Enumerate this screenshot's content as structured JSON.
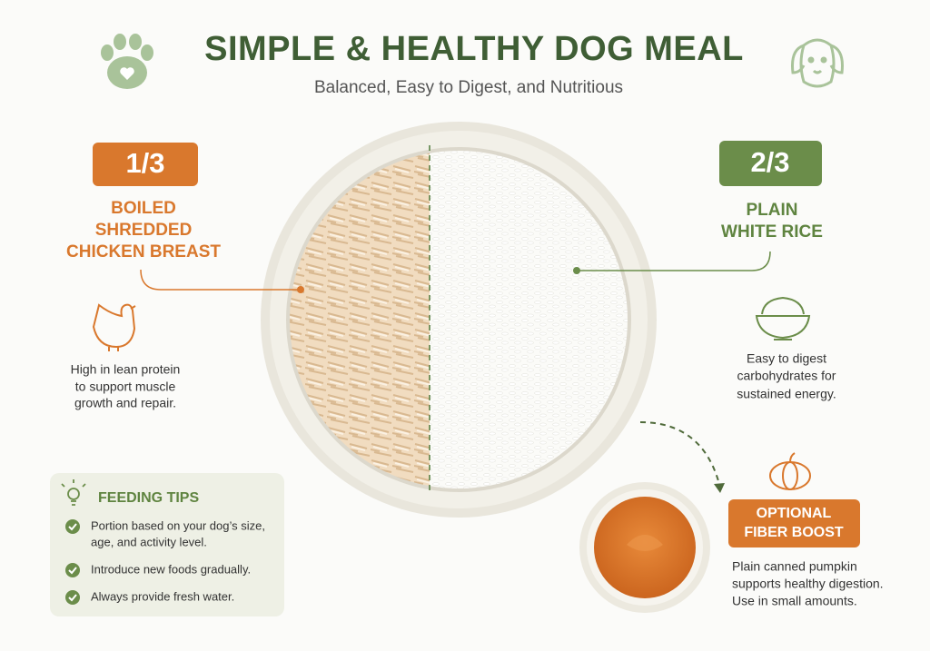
{
  "header": {
    "title": "SIMPLE & HEALTHY DOG MEAL",
    "subtitle": "Balanced, Easy to Digest, and Nutritious"
  },
  "chicken": {
    "portion": "1/3",
    "label_lines": [
      "BOILED",
      "SHREDDED",
      "CHICKEN BREAST"
    ],
    "description_lines": [
      "High in lean protein",
      "to support muscle",
      "growth and repair."
    ]
  },
  "rice": {
    "portion": "2/3",
    "label_lines": [
      "PLAIN",
      "WHITE RICE"
    ],
    "description_lines": [
      "Easy to digest",
      "carbohydrates for",
      "sustained energy."
    ]
  },
  "feeding_tips": {
    "title": "FEEDING TIPS",
    "items": [
      [
        "Portion based on your dog’s size,",
        "age, and activity level."
      ],
      [
        "Introduce new foods gradually."
      ],
      [
        "Always provide fresh water."
      ]
    ]
  },
  "optional": {
    "label_lines": [
      "OPTIONAL",
      "FIBER BOOST"
    ],
    "description_lines": [
      "Plain canned pumpkin",
      "supports healthy digestion.",
      "Use in small amounts."
    ]
  }
}
